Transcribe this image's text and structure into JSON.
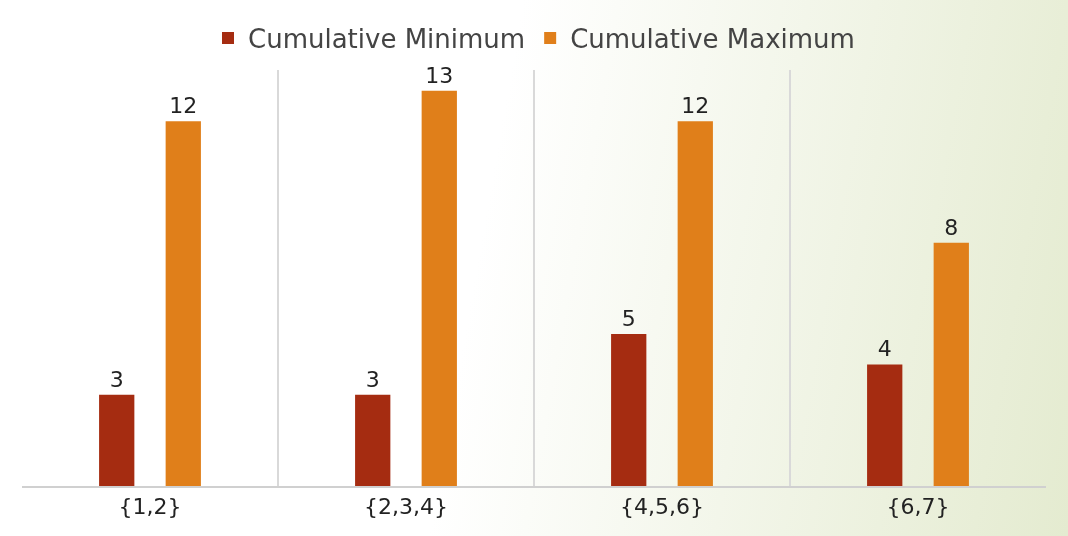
{
  "chart_data": {
    "type": "bar",
    "categories": [
      "{1,2}",
      "{2,3,4}",
      "{4,5,6}",
      "{6,7}"
    ],
    "series": [
      {
        "name": "Cumulative Minimum",
        "color": "#a52c11",
        "values": [
          3,
          3,
          5,
          4
        ]
      },
      {
        "name": "Cumulative Maximum",
        "color": "#e07f1a",
        "values": [
          12,
          13,
          12,
          8
        ]
      }
    ],
    "data_labels": true,
    "grid": "x",
    "legend": "top"
  }
}
